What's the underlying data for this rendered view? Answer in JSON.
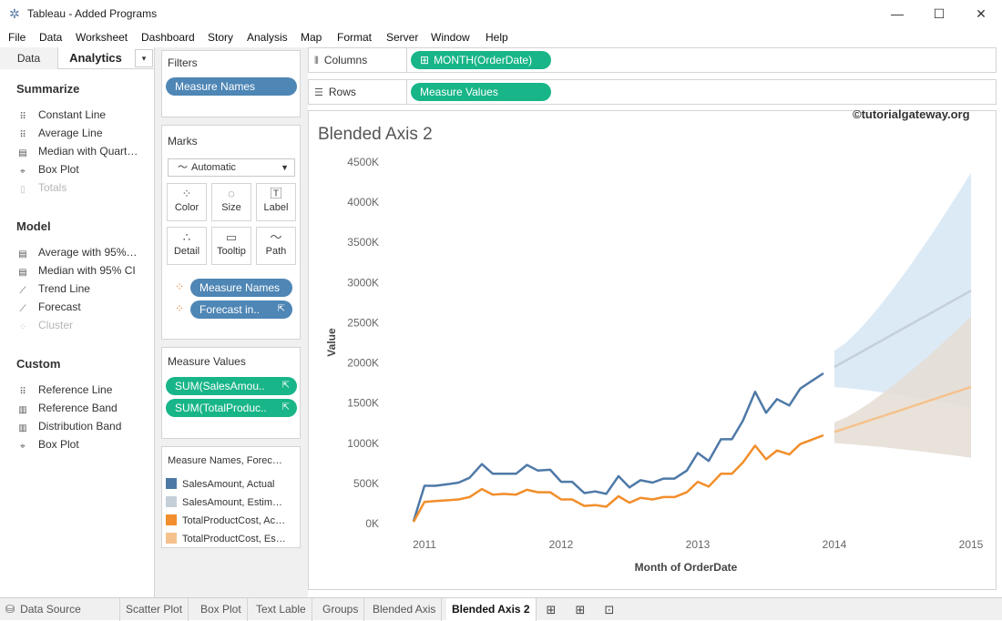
{
  "window": {
    "title": "Tableau - Added Programs",
    "minimize": "—",
    "maximize": "☐",
    "close": "✕"
  },
  "menu": [
    "File",
    "Data",
    "Worksheet",
    "Dashboard",
    "Story",
    "Analysis",
    "Map",
    "Format",
    "Server",
    "Window",
    "Help"
  ],
  "left_pane": {
    "tabs": {
      "data": "Data",
      "analytics": "Analytics",
      "menu": "▾"
    },
    "sections": [
      {
        "title": "Summarize",
        "items": [
          {
            "label": "Constant Line",
            "icon": "constant-line-icon",
            "enabled": true
          },
          {
            "label": "Average Line",
            "icon": "average-line-icon",
            "enabled": true
          },
          {
            "label": "Median with Quart…",
            "icon": "median-quartiles-icon",
            "enabled": true
          },
          {
            "label": "Box Plot",
            "icon": "box-plot-icon",
            "enabled": true
          },
          {
            "label": "Totals",
            "icon": "totals-icon",
            "enabled": false
          }
        ]
      },
      {
        "title": "Model",
        "items": [
          {
            "label": "Average with 95%…",
            "icon": "average-ci-icon",
            "enabled": true
          },
          {
            "label": "Median with 95% CI",
            "icon": "median-ci-icon",
            "enabled": true
          },
          {
            "label": "Trend Line",
            "icon": "trend-line-icon",
            "enabled": true
          },
          {
            "label": "Forecast",
            "icon": "forecast-icon",
            "enabled": true
          },
          {
            "label": "Cluster",
            "icon": "cluster-icon",
            "enabled": false
          }
        ]
      },
      {
        "title": "Custom",
        "items": [
          {
            "label": "Reference Line",
            "icon": "reference-line-icon",
            "enabled": true
          },
          {
            "label": "Reference Band",
            "icon": "reference-band-icon",
            "enabled": true
          },
          {
            "label": "Distribution Band",
            "icon": "distribution-band-icon",
            "enabled": true
          },
          {
            "label": "Box Plot",
            "icon": "box-plot-icon",
            "enabled": true
          }
        ]
      }
    ]
  },
  "filters": {
    "title": "Filters",
    "pill": "Measure Names"
  },
  "marks": {
    "title": "Marks",
    "type_select": "Automatic",
    "buttons": [
      "Color",
      "Size",
      "Label",
      "Detail",
      "Tooltip",
      "Path"
    ],
    "pills": [
      "Measure Names",
      "Forecast in.."
    ]
  },
  "measure_values": {
    "title": "Measure Values",
    "pills": [
      "SUM(SalesAmou..",
      "SUM(TotalProduc.."
    ]
  },
  "legend": {
    "title": "Measure Names, Forec…",
    "items": [
      {
        "label": "SalesAmount, Actual",
        "color": "#4e79a7"
      },
      {
        "label": "SalesAmount, Estim…",
        "color": "#c5cfd8"
      },
      {
        "label": "TotalProductCost, Ac…",
        "color": "#f28e2b"
      },
      {
        "label": "TotalProductCost, Es…",
        "color": "#f5c28d"
      }
    ]
  },
  "shelves": {
    "columns_label": "Columns",
    "columns_pill": "MONTH(OrderDate)",
    "rows_label": "Rows",
    "rows_pill": "Measure Values"
  },
  "view": {
    "title": "Blended Axis 2",
    "watermark": "©tutorialgateway.org"
  },
  "chart_data": {
    "type": "line",
    "title": "Blended Axis 2",
    "xlabel": "Month of OrderDate",
    "ylabel": "Value",
    "x_ticks": [
      "2011",
      "2012",
      "2013",
      "2014",
      "2015"
    ],
    "y_ticks": [
      "0K",
      "500K",
      "1000K",
      "1500K",
      "2000K",
      "2500K",
      "3000K",
      "3500K",
      "4000K",
      "4500K"
    ],
    "ylim": [
      0,
      4500000
    ],
    "x_range": [
      2011,
      2015
    ],
    "grid": false,
    "series": [
      {
        "name": "SalesAmount, Actual",
        "color": "#4e79a7",
        "x": [
          2010.92,
          2011.0,
          2011.08,
          2011.17,
          2011.25,
          2011.33,
          2011.42,
          2011.5,
          2011.58,
          2011.67,
          2011.75,
          2011.83,
          2011.92,
          2012.0,
          2012.08,
          2012.17,
          2012.25,
          2012.33,
          2012.42,
          2012.5,
          2012.58,
          2012.67,
          2012.75,
          2012.83,
          2012.92,
          2013.0,
          2013.08,
          2013.17,
          2013.25,
          2013.33,
          2013.42,
          2013.5,
          2013.58,
          2013.67,
          2013.75,
          2013.83,
          2013.92
        ],
        "y": [
          30000,
          470000,
          470000,
          490000,
          510000,
          570000,
          740000,
          620000,
          620000,
          620000,
          730000,
          660000,
          670000,
          520000,
          520000,
          380000,
          400000,
          370000,
          590000,
          450000,
          540000,
          510000,
          560000,
          560000,
          660000,
          880000,
          780000,
          1050000,
          1050000,
          1280000,
          1640000,
          1380000,
          1550000,
          1470000,
          1680000,
          1770000,
          1870000
        ]
      },
      {
        "name": "SalesAmount, Estimate",
        "color": "#c5cfd8",
        "x": [
          2014.0,
          2015.0
        ],
        "y": [
          1950000,
          2900000
        ],
        "band_upper": [
          2150000,
          4370000
        ],
        "band_lower": [
          1700000,
          1450000
        ]
      },
      {
        "name": "TotalProductCost, Actual",
        "color": "#f28e2b",
        "x": [
          2010.92,
          2011.0,
          2011.08,
          2011.17,
          2011.25,
          2011.33,
          2011.42,
          2011.5,
          2011.58,
          2011.67,
          2011.75,
          2011.83,
          2011.92,
          2012.0,
          2012.08,
          2012.17,
          2012.25,
          2012.33,
          2012.42,
          2012.5,
          2012.58,
          2012.67,
          2012.75,
          2012.83,
          2012.92,
          2013.0,
          2013.08,
          2013.17,
          2013.25,
          2013.33,
          2013.42,
          2013.5,
          2013.58,
          2013.67,
          2013.75,
          2013.83,
          2013.92
        ],
        "y": [
          20000,
          270000,
          280000,
          290000,
          300000,
          330000,
          430000,
          360000,
          370000,
          360000,
          420000,
          390000,
          390000,
          300000,
          300000,
          220000,
          230000,
          210000,
          340000,
          260000,
          320000,
          300000,
          330000,
          330000,
          390000,
          520000,
          460000,
          620000,
          620000,
          760000,
          970000,
          800000,
          910000,
          860000,
          990000,
          1040000,
          1100000
        ]
      },
      {
        "name": "TotalProductCost, Estimate",
        "color": "#f5c28d",
        "x": [
          2014.0,
          2015.0
        ],
        "y": [
          1140000,
          1700000
        ],
        "band_upper": [
          1260000,
          2580000
        ],
        "band_lower": [
          1000000,
          820000
        ]
      }
    ]
  },
  "bottom_tabs": {
    "data_source": "Data Source",
    "sheets": [
      "Scatter Plot",
      "Box Plot",
      "Text Lable",
      "Groups",
      "Blended Axis",
      "Blended Axis 2"
    ],
    "active": "Blended Axis 2"
  }
}
